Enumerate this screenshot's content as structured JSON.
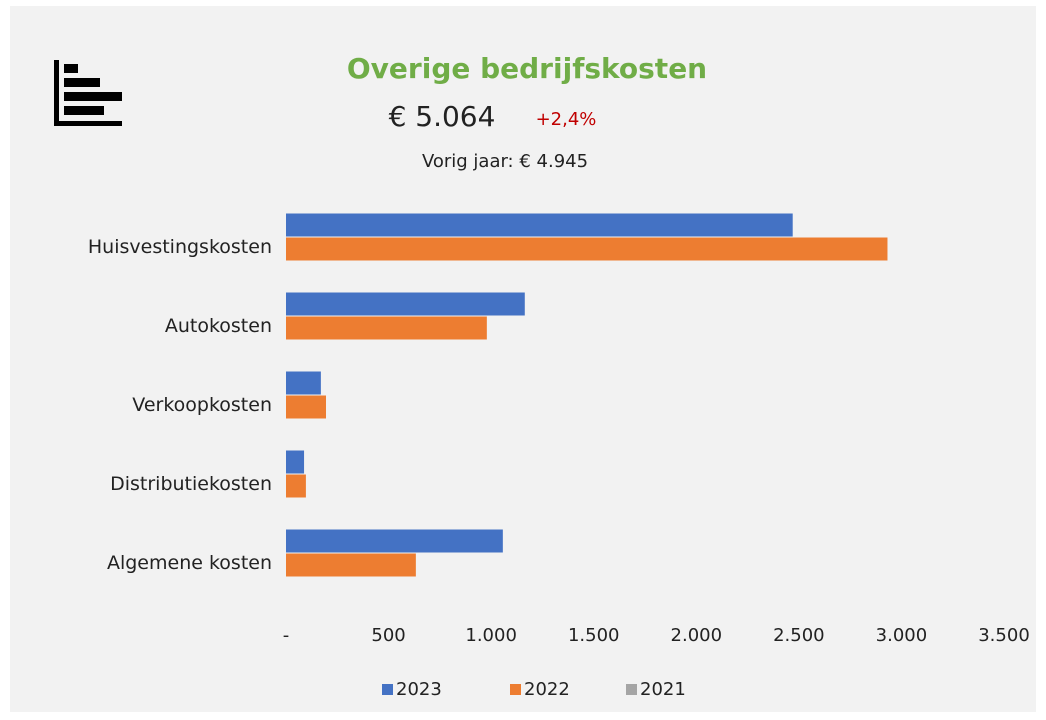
{
  "chart_data": {
    "type": "bar",
    "orientation": "horizontal",
    "title": "Overige bedrijfskosten",
    "total": "€ 5.064",
    "change": "+2,4%",
    "previous": "Vorig jaar: € 4.945",
    "categories": [
      "Huisvestingskosten",
      "Autokosten",
      "Verkoopkosten",
      "Distributiekosten",
      "Algemene kosten"
    ],
    "series": [
      {
        "name": "2023",
        "color": "#4472c4",
        "values": [
          2470,
          1164,
          170,
          88,
          1057
        ]
      },
      {
        "name": "2022",
        "color": "#ed7d31",
        "values": [
          2932,
          979,
          195,
          97,
          633
        ]
      },
      {
        "name": "2021",
        "color": "#a5a5a5",
        "values": [
          null,
          null,
          null,
          null,
          null
        ]
      }
    ],
    "xlim": [
      0,
      3500
    ],
    "xticks": [
      {
        "value": 0,
        "label": "-"
      },
      500,
      {
        "value": 1000,
        "label": "1.000"
      },
      {
        "value": 1500,
        "label": "1.500"
      },
      {
        "value": 2000,
        "label": "2.000"
      },
      {
        "value": 2500,
        "label": "2.500"
      },
      {
        "value": 3000,
        "label": "3.000"
      },
      {
        "value": 3500,
        "label": "3.500"
      }
    ],
    "grid": false,
    "legend": "bottom"
  }
}
